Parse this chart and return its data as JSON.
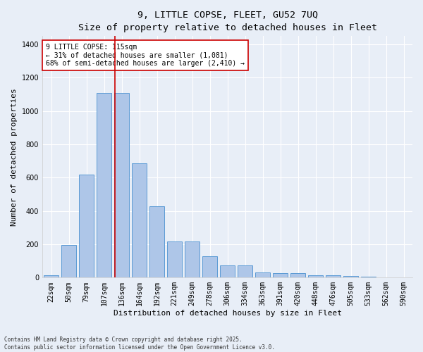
{
  "title_line1": "9, LITTLE COPSE, FLEET, GU52 7UQ",
  "title_line2": "Size of property relative to detached houses in Fleet",
  "xlabel": "Distribution of detached houses by size in Fleet",
  "ylabel": "Number of detached properties",
  "categories": [
    "22sqm",
    "50sqm",
    "79sqm",
    "107sqm",
    "136sqm",
    "164sqm",
    "192sqm",
    "221sqm",
    "249sqm",
    "278sqm",
    "306sqm",
    "334sqm",
    "363sqm",
    "391sqm",
    "420sqm",
    "448sqm",
    "476sqm",
    "505sqm",
    "533sqm",
    "562sqm",
    "590sqm"
  ],
  "values": [
    15,
    195,
    620,
    1110,
    1110,
    685,
    430,
    215,
    215,
    130,
    75,
    75,
    30,
    28,
    25,
    15,
    13,
    8,
    5,
    2,
    1
  ],
  "bar_color": "#aec6e8",
  "bar_edge_color": "#5b9bd5",
  "background_color": "#e8eef7",
  "grid_color": "#ffffff",
  "vline_x": 3.62,
  "vline_color": "#cc0000",
  "annotation_text": "9 LITTLE COPSE: 115sqm\n← 31% of detached houses are smaller (1,081)\n68% of semi-detached houses are larger (2,410) →",
  "annotation_box_color": "#cc0000",
  "annotation_bg": "#ffffff",
  "ylim": [
    0,
    1450
  ],
  "yticks": [
    0,
    200,
    400,
    600,
    800,
    1000,
    1200,
    1400
  ],
  "footnote": "Contains HM Land Registry data © Crown copyright and database right 2025.\nContains public sector information licensed under the Open Government Licence v3.0.",
  "title_fontsize": 9.5,
  "subtitle_fontsize": 8.5,
  "axis_label_fontsize": 8,
  "tick_fontsize": 7,
  "annotation_fontsize": 7,
  "footnote_fontsize": 5.5
}
